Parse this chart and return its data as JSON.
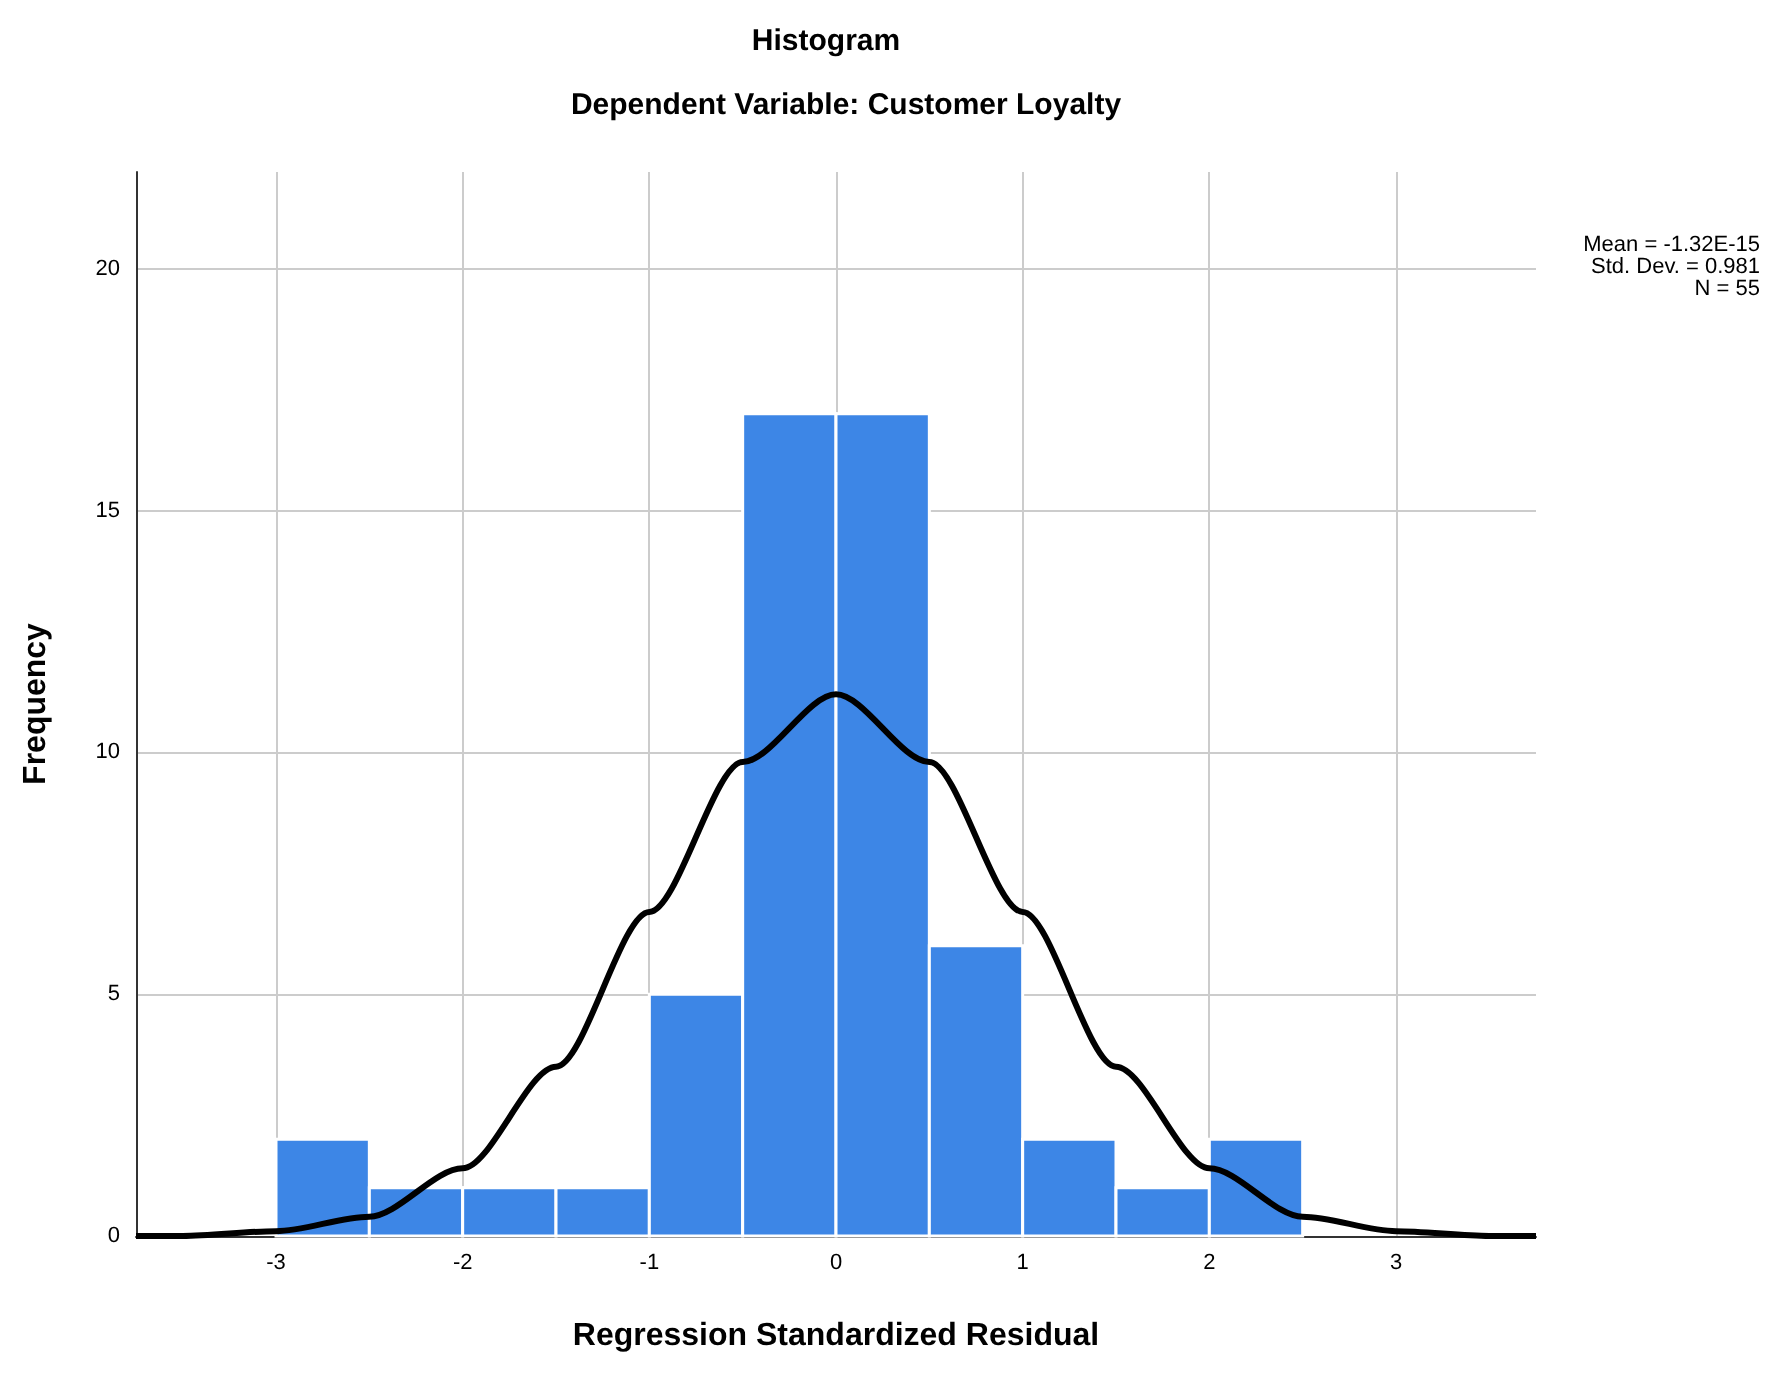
{
  "chart_data": {
    "type": "histogram",
    "title": "Histogram",
    "subtitle": "Dependent Variable: Customer Loyalty",
    "xlabel": "Regression Standardized Residual",
    "ylabel": "Frequency",
    "bins": [
      -3,
      -2.5,
      -2,
      -1.5,
      -1,
      -0.5,
      0,
      0.5,
      1,
      1.5,
      2,
      2.5
    ],
    "values": [
      2,
      1,
      1,
      1,
      5,
      17,
      17,
      6,
      2,
      1,
      2
    ],
    "color": "#3d86e6",
    "series": [
      {
        "type": "line",
        "color": "#000000",
        "x": [
          -3.75,
          -3.5,
          -3,
          -2.5,
          -2,
          -1.5,
          -1,
          -0.5,
          0,
          0.5,
          1,
          1.5,
          2,
          2.5,
          3,
          3.5,
          3.75
        ],
        "values": [
          0,
          0,
          0.1,
          0.4,
          1.4,
          3.5,
          6.7,
          9.8,
          11.2,
          9.8,
          6.7,
          3.5,
          1.4,
          0.4,
          0.1,
          0,
          0
        ]
      }
    ],
    "xlim": [
      -3.75,
      3.75
    ],
    "xticks": [
      -3,
      -2,
      -1,
      0,
      1,
      2,
      3
    ],
    "ylim": [
      0,
      22
    ],
    "yticks": [
      0,
      5,
      10,
      15,
      20
    ],
    "grid": true,
    "marker": "none",
    "line_style": "solid",
    "annotations": [
      "Mean = -1.32E-15",
      "Std. Dev. = 0.981",
      "N = 55"
    ]
  }
}
